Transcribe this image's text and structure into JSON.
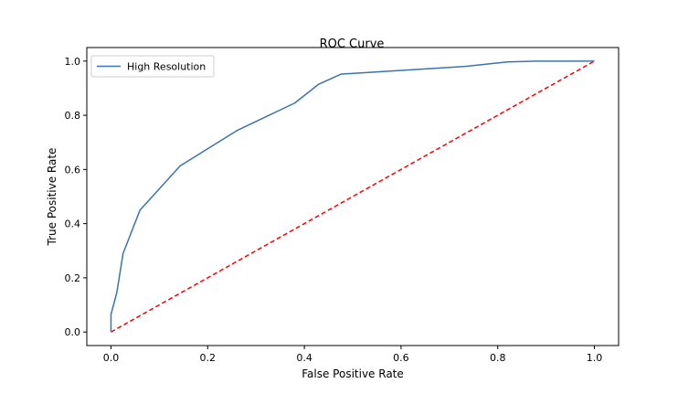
{
  "chart_data": {
    "type": "line",
    "title": "ROC Curve",
    "xlabel": "False Positive Rate",
    "ylabel": "True Positive Rate",
    "xlim": [
      -0.05,
      1.05
    ],
    "ylim": [
      -0.05,
      1.05
    ],
    "xticks": [
      "0.0",
      "0.2",
      "0.4",
      "0.6",
      "0.8",
      "1.0"
    ],
    "yticks": [
      "0.0",
      "0.2",
      "0.4",
      "0.6",
      "0.8",
      "1.0"
    ],
    "grid": false,
    "legend_position": "top-left",
    "series": [
      {
        "name": "High Resolution",
        "color": "#3a73b1",
        "style": "solid",
        "x": [
          0.0,
          0.0,
          0.012,
          0.025,
          0.06,
          0.143,
          0.262,
          0.38,
          0.43,
          0.476,
          0.73,
          0.82,
          0.88,
          1.0
        ],
        "y": [
          0.0,
          0.065,
          0.145,
          0.29,
          0.45,
          0.613,
          0.745,
          0.845,
          0.915,
          0.952,
          0.98,
          0.997,
          1.0,
          1.0
        ]
      },
      {
        "name": "",
        "color": "#ff0000",
        "style": "dashed",
        "x": [
          0.0,
          1.0
        ],
        "y": [
          0.0,
          1.0
        ]
      }
    ]
  }
}
